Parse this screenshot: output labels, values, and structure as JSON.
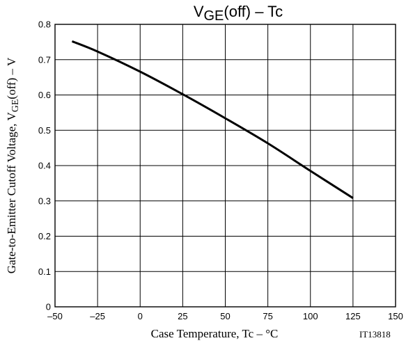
{
  "chart_data": {
    "type": "line",
    "title": {
      "main": "V",
      "sub": "GE",
      "rest": "(off)  –  Tc"
    },
    "xlabel": "Case Temperature, Tc  –  °C",
    "ylabel": {
      "main": "Gate-to-Emitter Cutoff  Voltage, V",
      "sub": "GE",
      "rest": "(off)  –  V"
    },
    "xlim": [
      -50,
      150
    ],
    "ylim": [
      0,
      0.8
    ],
    "xticks": [
      -50,
      -25,
      0,
      25,
      50,
      75,
      100,
      125,
      150
    ],
    "yticks": [
      0,
      0.1,
      0.2,
      0.3,
      0.4,
      0.5,
      0.6,
      0.7,
      0.8
    ],
    "xtick_labels": [
      "–50",
      "–25",
      "0",
      "25",
      "50",
      "75",
      "100",
      "125",
      "150"
    ],
    "ytick_labels": [
      "0",
      "0.1",
      "0.2",
      "0.3",
      "0.4",
      "0.5",
      "0.6",
      "0.7",
      "0.8"
    ],
    "grid": true,
    "series": [
      {
        "x": [
          -40,
          -25,
          0,
          25,
          50,
          75,
          100,
          125
        ],
        "y": [
          0.752,
          0.723,
          0.666,
          0.602,
          0.534,
          0.463,
          0.385,
          0.308
        ]
      }
    ],
    "annotation": "IT13818"
  }
}
